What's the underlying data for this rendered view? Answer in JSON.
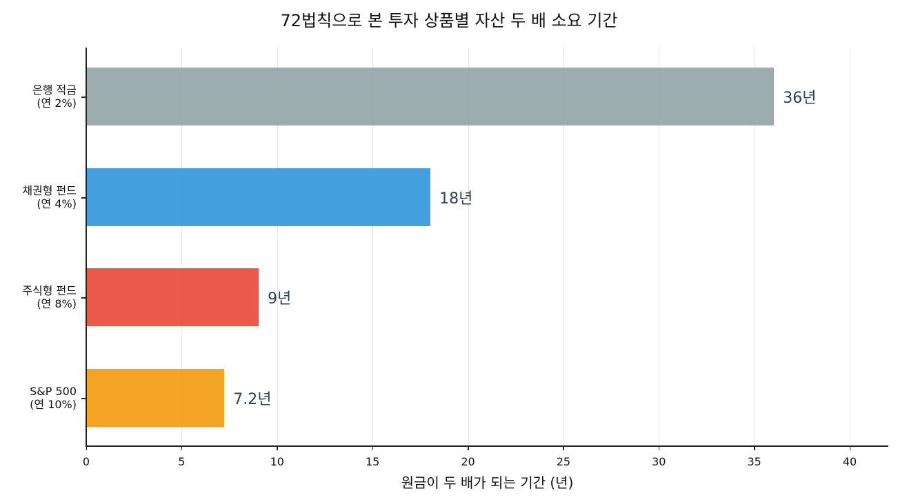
{
  "chart_data": {
    "type": "bar",
    "orientation": "horizontal",
    "title": "72법칙으로 본 투자 상품별 자산 두 배 소요 기간",
    "xlabel": "원금이 두 배가 되는 기간 (년)",
    "ylabel": "",
    "categories": [
      "은행 적금\n(연 2%)",
      "채권형 펀드\n(연 4%)",
      "주식형 펀드\n(연 8%)",
      "S&P 500\n(연 10%)"
    ],
    "category_lines": [
      [
        "은행 적금",
        "(연 2%)"
      ],
      [
        "채권형 펀드",
        "(연 4%)"
      ],
      [
        "주식형 펀드",
        "(연 8%)"
      ],
      [
        "S&P 500",
        "(연 10%)"
      ]
    ],
    "values": [
      36,
      18,
      9,
      7.2
    ],
    "value_labels": [
      "36년",
      "18년",
      "9년",
      "7.2년"
    ],
    "colors": [
      "#95a5a6",
      "#3498db",
      "#e74c3c",
      "#f39c12"
    ],
    "xlim": [
      0,
      42
    ],
    "xticks": [
      0,
      5,
      10,
      15,
      20,
      25,
      30,
      35,
      40
    ],
    "xtick_labels": [
      "0",
      "5",
      "10",
      "15",
      "20",
      "25",
      "30",
      "35",
      "40"
    ],
    "grid": {
      "x": true,
      "y": false
    },
    "legend": null
  }
}
